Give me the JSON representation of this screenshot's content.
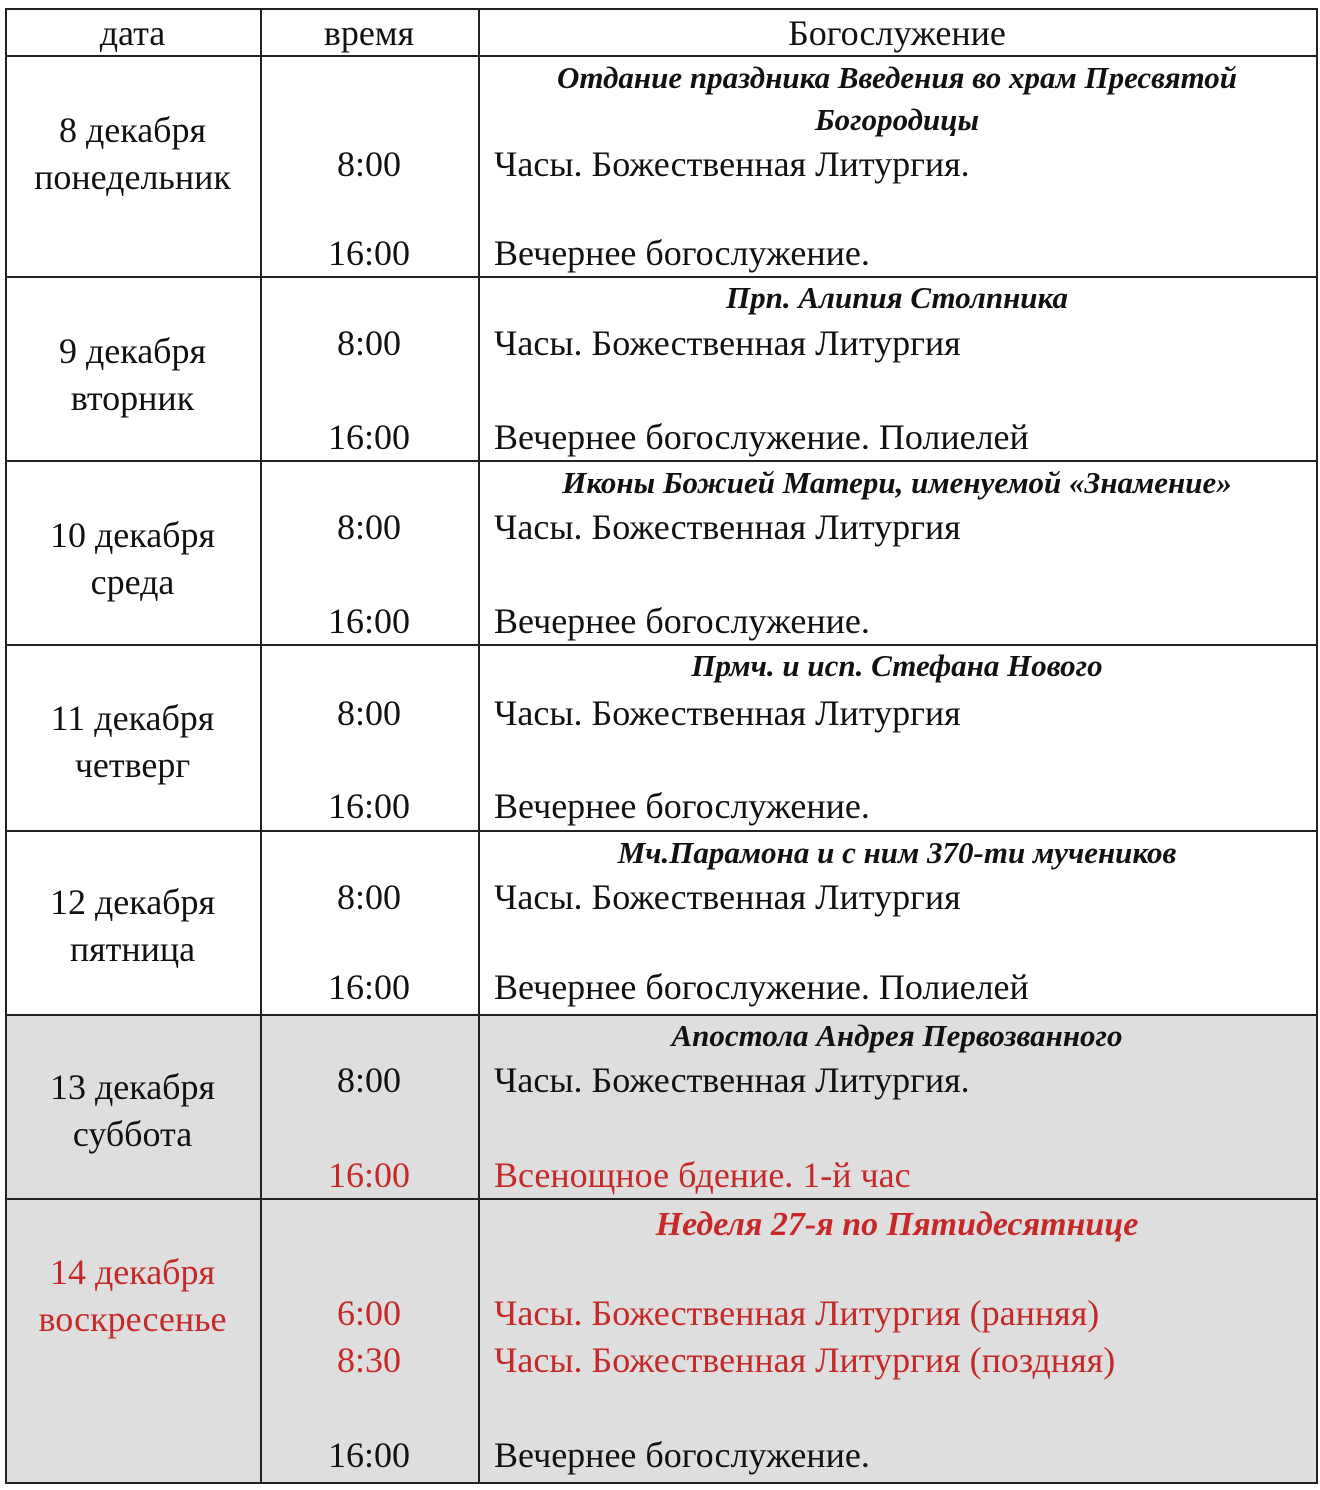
{
  "table": {
    "header": [
      "дата",
      "время",
      "Богослужение"
    ],
    "rows": [
      {
        "date": "8 декабря",
        "weekday": "понедельник",
        "feast": "Отдание праздника Введения во храм Пресвятой Богородицы",
        "services": [
          {
            "time": "8:00",
            "name": "Часы. Божественная Литургия."
          },
          {
            "time": "16:00",
            "name": "Вечернее богослужение."
          }
        ]
      },
      {
        "date": "9 декабря",
        "weekday": "вторник",
        "feast": "Прп. Алипия Столпника",
        "services": [
          {
            "time": "8:00",
            "name": "Часы. Божественная Литургия"
          },
          {
            "time": "16:00",
            "name": "Вечернее богослужение. Полиелей"
          }
        ]
      },
      {
        "date": "10 декабря",
        "weekday": "среда",
        "feast": "Иконы Божией Матери, именуемой «Знамение»",
        "services": [
          {
            "time": "8:00",
            "name": "Часы. Божественная Литургия"
          },
          {
            "time": "16:00",
            "name": "Вечернее богослужение."
          }
        ]
      },
      {
        "date": "11 декабря",
        "weekday": "четверг",
        "feast": "Прмч. и исп. Стефана Нового",
        "services": [
          {
            "time": "8:00",
            "name": "Часы. Божественная Литургия"
          },
          {
            "time": "16:00",
            "name": "Вечернее богослужение."
          }
        ]
      },
      {
        "date": "12 декабря",
        "weekday": "пятница",
        "feast": "Мч.Парамона и с ним 370-ти мучеников",
        "services": [
          {
            "time": "8:00",
            "name": "Часы. Божественная Литургия"
          },
          {
            "time": "16:00",
            "name": "Вечернее богослужение. Полиелей"
          }
        ]
      },
      {
        "date": "13 декабря",
        "weekday": "суббота",
        "feast": "Апостола Андрея Первозванного",
        "shaded": true,
        "services": [
          {
            "time": "8:00",
            "name": "Часы. Божественная Литургия."
          },
          {
            "time": "16:00",
            "name": "Всенощное бдение. 1-й час",
            "color": "#c62828"
          }
        ]
      },
      {
        "date": "14 декабря",
        "weekday": "воскресенье",
        "feast": "Неделя 27-я по Пятидесятнице",
        "shaded": true,
        "color": "#c62828",
        "services": [
          {
            "time": "6:00",
            "name": "Часы. Божественная Литургия (ранняя)",
            "color": "#c62828"
          },
          {
            "time": "8:30",
            "name": "Часы. Божественная Литургия (поздняя)",
            "color": "#c62828"
          },
          {
            "time": "16:00",
            "name": "Вечернее богослужение."
          }
        ]
      }
    ]
  }
}
